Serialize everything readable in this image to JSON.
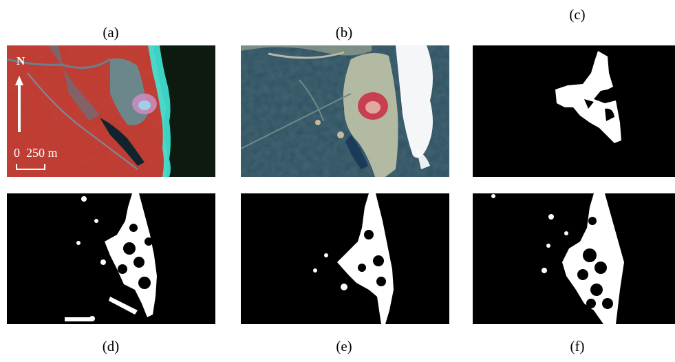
{
  "figure": {
    "panels": [
      {
        "id": "a",
        "label": "(a)",
        "content": "false-color satellite image"
      },
      {
        "id": "b",
        "label": "(b)",
        "content": "true-color satellite image"
      },
      {
        "id": "c",
        "label": "(c)",
        "content": "binary mask"
      },
      {
        "id": "d",
        "label": "(d)",
        "content": "binary mask"
      },
      {
        "id": "e",
        "label": "(e)",
        "content": "binary mask"
      },
      {
        "id": "f",
        "label": "(f)",
        "content": "binary mask"
      }
    ],
    "north_arrow": "N",
    "scale_bar": {
      "text": "0  250 m"
    }
  },
  "colors": {
    "false_color_land": "#c23a30",
    "false_color_sea": "#0c1a10",
    "foam": "#40e8d8",
    "true_color_water": "#2d5060",
    "true_color_wave": "#ffffff",
    "mask_bg": "#000000",
    "mask_fg": "#ffffff"
  }
}
